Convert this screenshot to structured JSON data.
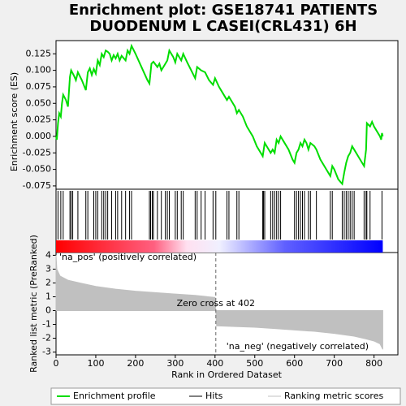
{
  "chart_data": [
    {
      "type": "line",
      "title": [
        "Enrichment plot: GSE18741 PATIENTS",
        "DUODENUM L CASEI(CRL431) 6H"
      ],
      "ylabel": "Enrichment score (ES)",
      "xlim": [
        0,
        860
      ],
      "ylim": [
        -0.08,
        0.145
      ],
      "yticks": [
        0.125,
        {
          "value": 0.1,
          "label": "0.100"
        },
        0.075,
        {
          "value": 0.05,
          "label": "0.050"
        },
        0.025,
        {
          "value": 0,
          "label": "0.000"
        },
        -0.025,
        {
          "value": -0.05,
          "label": "-0.050"
        },
        -0.075
      ],
      "series": [
        {
          "name": "Enrichment profile",
          "color": "#00dd00",
          "x": [
            0,
            2,
            5,
            8,
            12,
            15,
            18,
            25,
            30,
            35,
            38,
            45,
            50,
            55,
            65,
            75,
            80,
            85,
            90,
            95,
            100,
            105,
            110,
            115,
            120,
            125,
            130,
            135,
            140,
            145,
            150,
            155,
            160,
            165,
            175,
            180,
            185,
            190,
            200,
            215,
            230,
            235,
            240,
            245,
            255,
            260,
            265,
            275,
            280,
            285,
            295,
            300,
            305,
            315,
            320,
            330,
            340,
            350,
            355,
            365,
            375,
            385,
            395,
            400,
            410,
            420,
            430,
            435,
            450,
            455,
            460,
            470,
            480,
            495,
            505,
            515,
            520,
            525,
            530,
            540,
            545,
            550,
            555,
            560,
            565,
            575,
            585,
            595,
            600,
            605,
            610,
            615,
            620,
            625,
            630,
            635,
            640,
            650,
            655,
            665,
            680,
            690,
            695,
            700,
            710,
            720,
            725,
            730,
            735,
            740,
            745,
            750,
            760,
            770,
            775,
            780,
            782,
            790,
            795,
            800,
            815,
            818,
            820,
            822
          ],
          "values": [
            0,
            -0.005,
            0.02,
            0.035,
            0.03,
            0.05,
            0.063,
            0.055,
            0.045,
            0.09,
            0.1,
            0.092,
            0.085,
            0.097,
            0.085,
            0.07,
            0.097,
            0.103,
            0.093,
            0.102,
            0.095,
            0.115,
            0.108,
            0.125,
            0.12,
            0.13,
            0.128,
            0.125,
            0.115,
            0.123,
            0.118,
            0.125,
            0.115,
            0.122,
            0.115,
            0.13,
            0.125,
            0.137,
            0.125,
            0.105,
            0.085,
            0.08,
            0.11,
            0.113,
            0.105,
            0.11,
            0.1,
            0.11,
            0.115,
            0.13,
            0.12,
            0.112,
            0.125,
            0.115,
            0.125,
            0.112,
            0.1,
            0.088,
            0.105,
            0.1,
            0.097,
            0.085,
            0.078,
            0.088,
            0.075,
            0.065,
            0.055,
            0.06,
            0.045,
            0.035,
            0.04,
            0.03,
            0.015,
            0,
            -0.015,
            -0.025,
            -0.03,
            -0.01,
            -0.015,
            -0.025,
            -0.02,
            -0.025,
            -0.005,
            -0.01,
            0,
            -0.01,
            -0.02,
            -0.035,
            -0.04,
            -0.025,
            -0.02,
            -0.01,
            -0.015,
            -0.005,
            -0.01,
            -0.02,
            -0.01,
            -0.015,
            -0.02,
            -0.035,
            -0.05,
            -0.06,
            -0.045,
            -0.05,
            -0.065,
            -0.072,
            -0.055,
            -0.04,
            -0.03,
            -0.025,
            -0.015,
            -0.02,
            -0.03,
            -0.04,
            -0.045,
            -0.02,
            0.02,
            0.015,
            0.022,
            0.015,
            0,
            -0.005,
            0.005,
            0
          ]
        }
      ]
    },
    {
      "type": "rug",
      "xlim": [
        0,
        860
      ],
      "series": [
        {
          "name": "Hits",
          "color": "#000000",
          "x": [
            5,
            12,
            18,
            35,
            38,
            42,
            55,
            75,
            80,
            95,
            100,
            105,
            115,
            120,
            125,
            130,
            140,
            150,
            155,
            165,
            175,
            185,
            190,
            235,
            238,
            242,
            245,
            255,
            265,
            275,
            280,
            285,
            300,
            305,
            315,
            320,
            350,
            355,
            365,
            375,
            395,
            402,
            430,
            435,
            455,
            460,
            520,
            522,
            525,
            540,
            545,
            550,
            555,
            560,
            565,
            600,
            605,
            610,
            615,
            620,
            625,
            635,
            640,
            655,
            690,
            695,
            720,
            725,
            730,
            735,
            740,
            745,
            750,
            775,
            780,
            782,
            790,
            820
          ]
        }
      ]
    },
    {
      "type": "area",
      "xlabel": "Rank in Ordered Dataset",
      "ylabel": "Ranked list metric (PreRanked)",
      "xlim": [
        0,
        860
      ],
      "ylim": [
        -3.2,
        4.2
      ],
      "xticks": [
        0,
        100,
        200,
        300,
        400,
        500,
        600,
        700,
        800
      ],
      "yticks": [
        4,
        3,
        2,
        1,
        0,
        -1,
        -2,
        -3
      ],
      "zero_cross": 402,
      "zero_cross_label": "Zero cross at 402",
      "annotations": [
        {
          "text": "'na_pos' (positively correlated)",
          "color": "#cc0000"
        },
        {
          "text": "'na_neg' (negatively correlated)",
          "color": "#0000cc"
        }
      ],
      "series": [
        {
          "name": "Ranking metric scores",
          "color": "#c0c0c0",
          "x": [
            0,
            2,
            10,
            30,
            60,
            100,
            150,
            200,
            250,
            300,
            350,
            400,
            402,
            404,
            450,
            500,
            550,
            600,
            650,
            700,
            750,
            780,
            800,
            815,
            822
          ],
          "values": [
            4.0,
            3.0,
            2.5,
            2.2,
            2.0,
            1.75,
            1.55,
            1.4,
            1.3,
            1.2,
            1.1,
            0.95,
            0,
            -1.1,
            -1.15,
            -1.2,
            -1.3,
            -1.4,
            -1.5,
            -1.65,
            -1.85,
            -2.05,
            -2.2,
            -2.4,
            -2.8
          ]
        }
      ]
    }
  ]
}
